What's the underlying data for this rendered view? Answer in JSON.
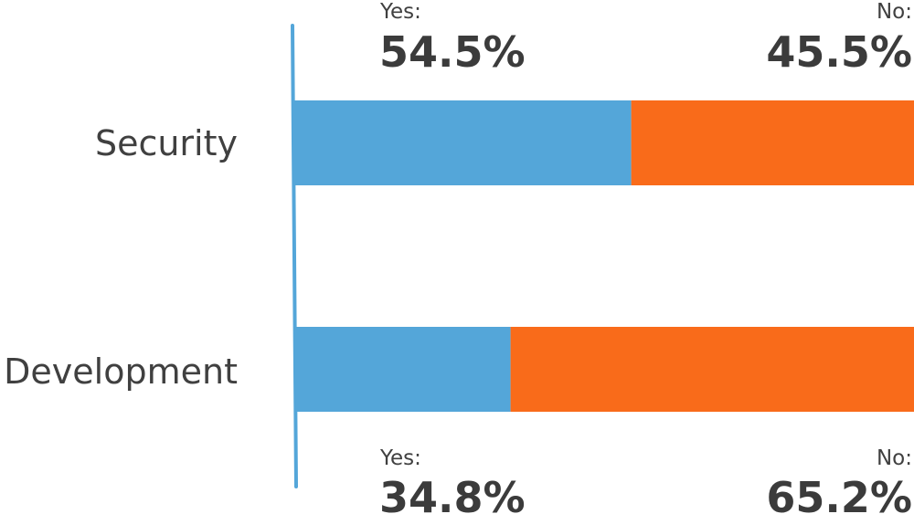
{
  "chart_data": {
    "type": "bar",
    "orientation": "horizontal",
    "stacked": true,
    "categories": [
      "Security",
      "Development"
    ],
    "series": [
      {
        "name": "Yes:",
        "values": [
          54.5,
          34.8
        ],
        "labels": [
          "54.5%",
          "34.8%"
        ]
      },
      {
        "name": "No:",
        "values": [
          45.5,
          65.2
        ],
        "labels": [
          "45.5%",
          "65.2%"
        ]
      }
    ],
    "colors": {
      "yes": "#54a6d9",
      "no": "#f96b1a",
      "axis": "#54a6d9",
      "text": "#404040"
    },
    "xlim": [
      0,
      100
    ],
    "grid": false,
    "legend": "none"
  }
}
